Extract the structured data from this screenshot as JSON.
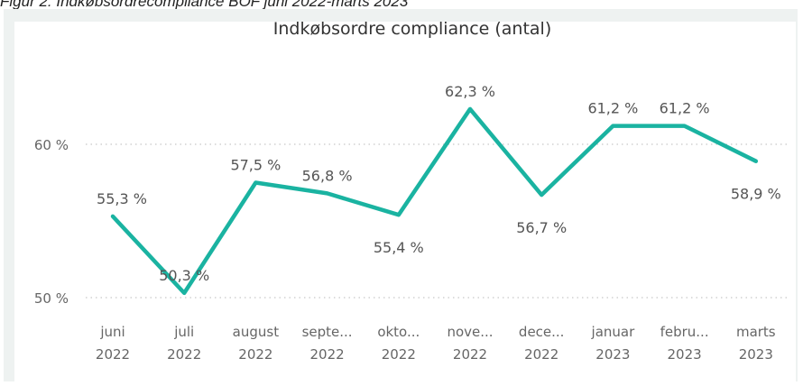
{
  "caption": "Figur 2: Indkøbsordrecompliance BOF juni 2022-marts 2023",
  "chart_data": {
    "type": "line",
    "title": "Indkøbsordre compliance (antal)",
    "xlabel": "",
    "ylabel": "",
    "categories": [
      [
        "juni",
        "2022"
      ],
      [
        "juli",
        "2022"
      ],
      [
        "august",
        "2022"
      ],
      [
        "septe...",
        "2022"
      ],
      [
        "okto...",
        "2022"
      ],
      [
        "nove...",
        "2022"
      ],
      [
        "dece...",
        "2022"
      ],
      [
        "januar",
        "2023"
      ],
      [
        "febru...",
        "2023"
      ],
      [
        "marts",
        "2023"
      ]
    ],
    "values": [
      55.3,
      50.3,
      57.5,
      56.8,
      55.4,
      62.3,
      56.7,
      61.2,
      61.2,
      58.9
    ],
    "data_labels": [
      "55,3 %",
      "50,3 %",
      "57,5 %",
      "56,8 %",
      "55,4 %",
      "62,3 %",
      "56,7 %",
      "61,2 %",
      "61,2 %",
      "58,9 %"
    ],
    "label_position": [
      "above",
      "above",
      "above",
      "above",
      "below",
      "above",
      "below",
      "above",
      "above",
      "below"
    ],
    "y_ticks": [
      {
        "value": 50,
        "label": "50 %"
      },
      {
        "value": 60,
        "label": "60 %"
      }
    ],
    "ylim": [
      49.5,
      65.5
    ],
    "grid": true,
    "line_color": "#1ab3a1"
  }
}
